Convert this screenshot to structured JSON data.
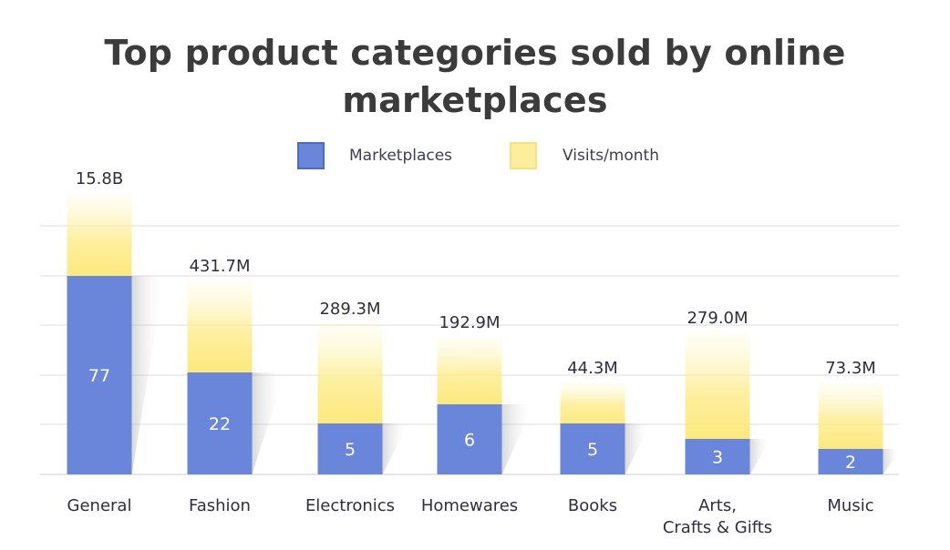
{
  "chart_data": {
    "type": "bar",
    "title": "Top product categories sold by online\nmarketplaces",
    "xlabel": "",
    "ylabel": "",
    "grid": true,
    "legend_position": "top-center",
    "categories": [
      [
        "General"
      ],
      [
        "Fashion"
      ],
      [
        "Electronics"
      ],
      [
        "Homewares"
      ],
      [
        "Books"
      ],
      [
        "Arts,",
        "Crafts & Gifts"
      ],
      [
        "Music"
      ]
    ],
    "series": [
      {
        "name": "Marketplaces",
        "values": [
          77,
          22,
          5,
          6,
          5,
          3,
          2
        ],
        "labels": [
          "77",
          "22",
          "5",
          "6",
          "5",
          "3",
          "2"
        ],
        "color": "#6a86db"
      },
      {
        "name": "Visits/month",
        "values": [
          15800000000,
          431700000,
          289300000,
          192900000,
          44300000,
          279000000,
          73300000
        ],
        "labels": [
          "15.8B",
          "431.7M",
          "289.3M",
          "192.9M",
          "44.3M",
          "279.0M",
          "73.3M"
        ],
        "color": "#fcea8c"
      }
    ]
  }
}
